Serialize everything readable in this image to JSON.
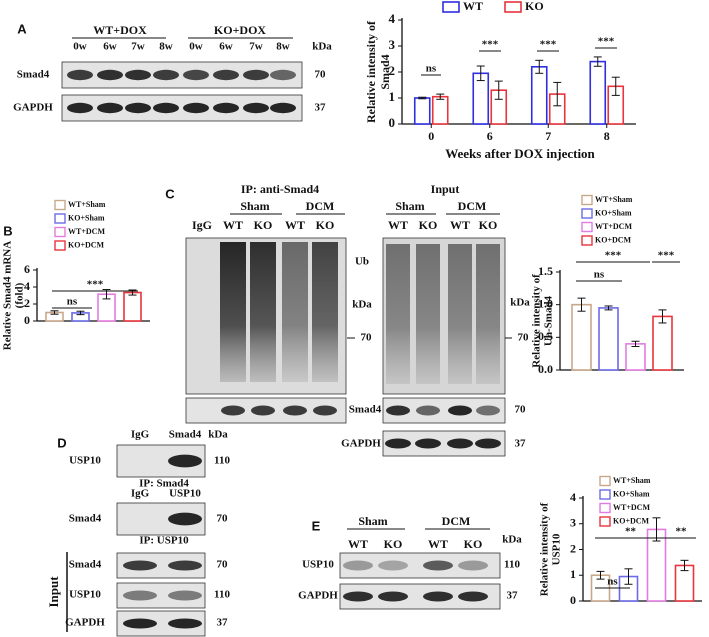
{
  "panels": {
    "a": {
      "label": "A",
      "groups": [
        "WT+DOX",
        "KO+DOX"
      ],
      "lanes": [
        "0w",
        "6w",
        "7w",
        "8w",
        "0w",
        "6w",
        "7w",
        "8w"
      ],
      "kda": "kDa",
      "rows": [
        {
          "name": "Smad4",
          "kda": 70
        },
        {
          "name": "GAPDH",
          "kda": 37
        }
      ]
    },
    "b": {
      "label": "B"
    },
    "c": {
      "label": "C",
      "ip_title": "IP: anti-Smad4",
      "ip_groups": [
        "Sham",
        "DCM"
      ],
      "ip_lanes": [
        "IgG",
        "WT",
        "KO",
        "WT",
        "KO"
      ],
      "input_title": "Input",
      "input_groups": [
        "Sham",
        "DCM"
      ],
      "input_lanes": [
        "WT",
        "KO",
        "WT",
        "KO"
      ],
      "ub": "Ub",
      "kda_left": "kDa",
      "kda_right": "kDa",
      "mw_left": 70,
      "mw_right": 70,
      "rows": [
        {
          "name": "Smad4",
          "kda": 70
        },
        {
          "name": "GAPDH",
          "kda": 37
        }
      ]
    },
    "d": {
      "label": "D",
      "kda": "kDa",
      "blocks": [
        {
          "lanes": [
            "IgG",
            "Smad4"
          ],
          "row": {
            "name": "USP10",
            "kda": 110
          },
          "caption": "IP: Smad4"
        },
        {
          "lanes": [
            "IgG",
            "USP10"
          ],
          "row": {
            "name": "Smad4",
            "kda": 70
          },
          "caption": "IP: USP10"
        }
      ],
      "input": "Input",
      "input_rows": [
        {
          "name": "Smad4",
          "kda": 70
        },
        {
          "name": "USP10",
          "kda": 110
        },
        {
          "name": "GAPDH",
          "kda": 37
        }
      ]
    },
    "e": {
      "label": "E",
      "groups": [
        "Sham",
        "DCM"
      ],
      "lanes": [
        "WT",
        "KO",
        "WT",
        "KO"
      ],
      "kda": "kDa",
      "rows": [
        {
          "name": "USP10",
          "kda": 110
        },
        {
          "name": "GAPDH",
          "kda": 37
        }
      ]
    }
  },
  "chart_data": [
    {
      "type": "bar",
      "ylabel": [
        "Relative intensity of",
        "Smad4"
      ],
      "xlabel": "Weeks after DOX injection",
      "categories": [
        "0",
        "6",
        "7",
        "8"
      ],
      "series": [
        {
          "name": "WT",
          "color": "#2f2fe0",
          "values": [
            1.0,
            1.95,
            2.2,
            2.4
          ],
          "errors": [
            0.03,
            0.28,
            0.25,
            0.18
          ]
        },
        {
          "name": "KO",
          "color": "#e8343c",
          "values": [
            1.05,
            1.3,
            1.15,
            1.45
          ],
          "errors": [
            0.1,
            0.35,
            0.45,
            0.35
          ]
        }
      ],
      "ylim": [
        0,
        4
      ],
      "yticks": [
        0,
        1,
        2,
        3,
        4
      ],
      "legend": "top",
      "annotations": [
        "ns",
        "***",
        "***",
        "***"
      ]
    },
    {
      "type": "bar",
      "ylabel": [
        "Relative Smad4 mRNA",
        "(fold)"
      ],
      "categories": [
        null
      ],
      "series": [
        {
          "name": "WT+Sham",
          "color": "#c9a88a",
          "values": [
            1.0
          ],
          "errors": [
            0.2
          ]
        },
        {
          "name": "KO+Sham",
          "color": "#6b6be8",
          "values": [
            0.95
          ],
          "errors": [
            0.2
          ]
        },
        {
          "name": "WT+DCM",
          "color": "#e27ce2",
          "values": [
            3.15
          ],
          "errors": [
            0.55
          ]
        },
        {
          "name": "KO+DCM",
          "color": "#e8343c",
          "values": [
            3.35
          ],
          "errors": [
            0.3
          ]
        }
      ],
      "ylim": [
        0,
        6
      ],
      "yticks": [
        0,
        2,
        4,
        6
      ],
      "legend": "top-left",
      "annotations": [
        "ns",
        "***"
      ]
    },
    {
      "type": "bar",
      "ylabel": [
        "Relative intensity of",
        "Ub-Smad4"
      ],
      "categories": [
        null
      ],
      "series": [
        {
          "name": "WT+Sham",
          "color": "#c9a88a",
          "values": [
            1.0
          ],
          "errors": [
            0.1
          ]
        },
        {
          "name": "KO+Sham",
          "color": "#6b6be8",
          "values": [
            0.95
          ],
          "errors": [
            0.03
          ]
        },
        {
          "name": "WT+DCM",
          "color": "#e27ce2",
          "values": [
            0.4
          ],
          "errors": [
            0.04
          ]
        },
        {
          "name": "KO+DCM",
          "color": "#e8343c",
          "values": [
            0.82
          ],
          "errors": [
            0.1
          ]
        }
      ],
      "ylim": [
        0,
        1.5
      ],
      "yticks": [
        {
          "value": 0,
          "label": "0.0"
        },
        {
          "value": 0.5,
          "label": "0.5"
        },
        {
          "value": 1,
          "label": "1.0"
        },
        {
          "value": 1.5,
          "label": "1.5"
        }
      ],
      "legend": "top-left",
      "annotations": [
        "ns",
        "***",
        "***"
      ]
    },
    {
      "type": "bar",
      "ylabel": [
        "Relative intensity of",
        "USP10"
      ],
      "categories": [
        null
      ],
      "series": [
        {
          "name": "WT+Sham",
          "color": "#c9a88a",
          "values": [
            1.0
          ],
          "errors": [
            0.15
          ]
        },
        {
          "name": "KO+Sham",
          "color": "#6b6be8",
          "values": [
            0.95
          ],
          "errors": [
            0.3
          ]
        },
        {
          "name": "WT+DCM",
          "color": "#e27ce2",
          "values": [
            2.78
          ],
          "errors": [
            0.45
          ]
        },
        {
          "name": "KO+DCM",
          "color": "#e8343c",
          "values": [
            1.38
          ],
          "errors": [
            0.2
          ]
        }
      ],
      "ylim": [
        0,
        4
      ],
      "yticks": [
        0,
        1,
        2,
        3,
        4
      ],
      "legend": "top-left",
      "annotations": [
        "ns",
        "**",
        "**"
      ]
    }
  ]
}
